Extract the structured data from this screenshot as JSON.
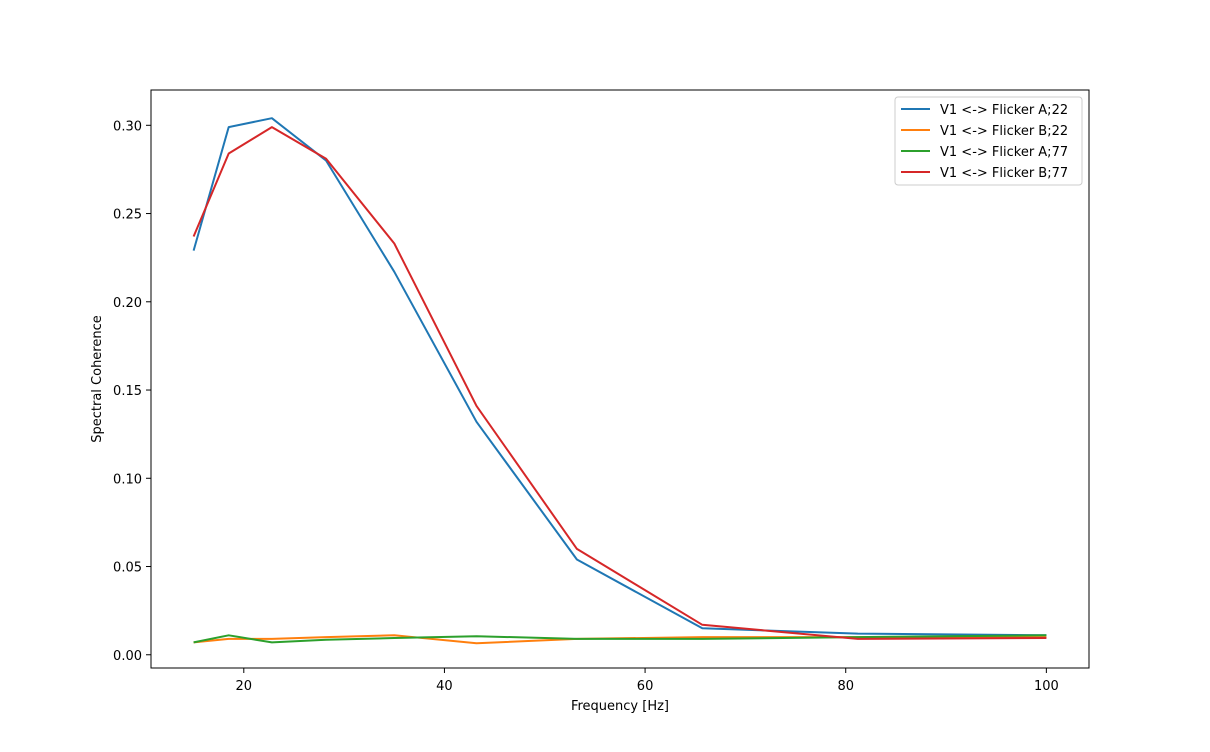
{
  "chart_data": {
    "type": "line",
    "xlabel": "Frequency [Hz]",
    "ylabel": "Spectral Coherence",
    "xlim": [
      10.75,
      104.25
    ],
    "ylim": [
      -0.0075,
      0.32
    ],
    "xticks": [
      20,
      40,
      60,
      80,
      100
    ],
    "yticks": [
      0.0,
      0.05,
      0.1,
      0.15,
      0.2,
      0.25,
      0.3
    ],
    "xtick_labels": [
      "20",
      "40",
      "60",
      "80",
      "100"
    ],
    "ytick_labels": [
      "0.00",
      "0.05",
      "0.10",
      "0.15",
      "0.20",
      "0.25",
      "0.30"
    ],
    "grid": false,
    "legend_position": "top-right",
    "x": [
      15,
      18.5,
      22.8,
      28.2,
      35,
      43.2,
      53.2,
      65.7,
      81.2,
      100
    ],
    "series": [
      {
        "name": "V1 <-> Flicker A;22",
        "color": "#1f77b4",
        "values": [
          0.229,
          0.299,
          0.304,
          0.28,
          0.217,
          0.132,
          0.054,
          0.015,
          0.012,
          0.011
        ]
      },
      {
        "name": "V1 <-> Flicker B;22",
        "color": "#ff7f0e",
        "values": [
          0.007,
          0.009,
          0.009,
          0.01,
          0.011,
          0.0065,
          0.009,
          0.01,
          0.01,
          0.01
        ]
      },
      {
        "name": "V1 <-> Flicker A;77",
        "color": "#2ca02c",
        "values": [
          0.007,
          0.011,
          0.007,
          0.0085,
          0.0095,
          0.0105,
          0.009,
          0.009,
          0.01,
          0.011
        ]
      },
      {
        "name": "V1 <-> Flicker B;77",
        "color": "#d62728",
        "values": [
          0.237,
          0.284,
          0.299,
          0.281,
          0.233,
          0.141,
          0.06,
          0.017,
          0.009,
          0.0095
        ]
      }
    ]
  }
}
